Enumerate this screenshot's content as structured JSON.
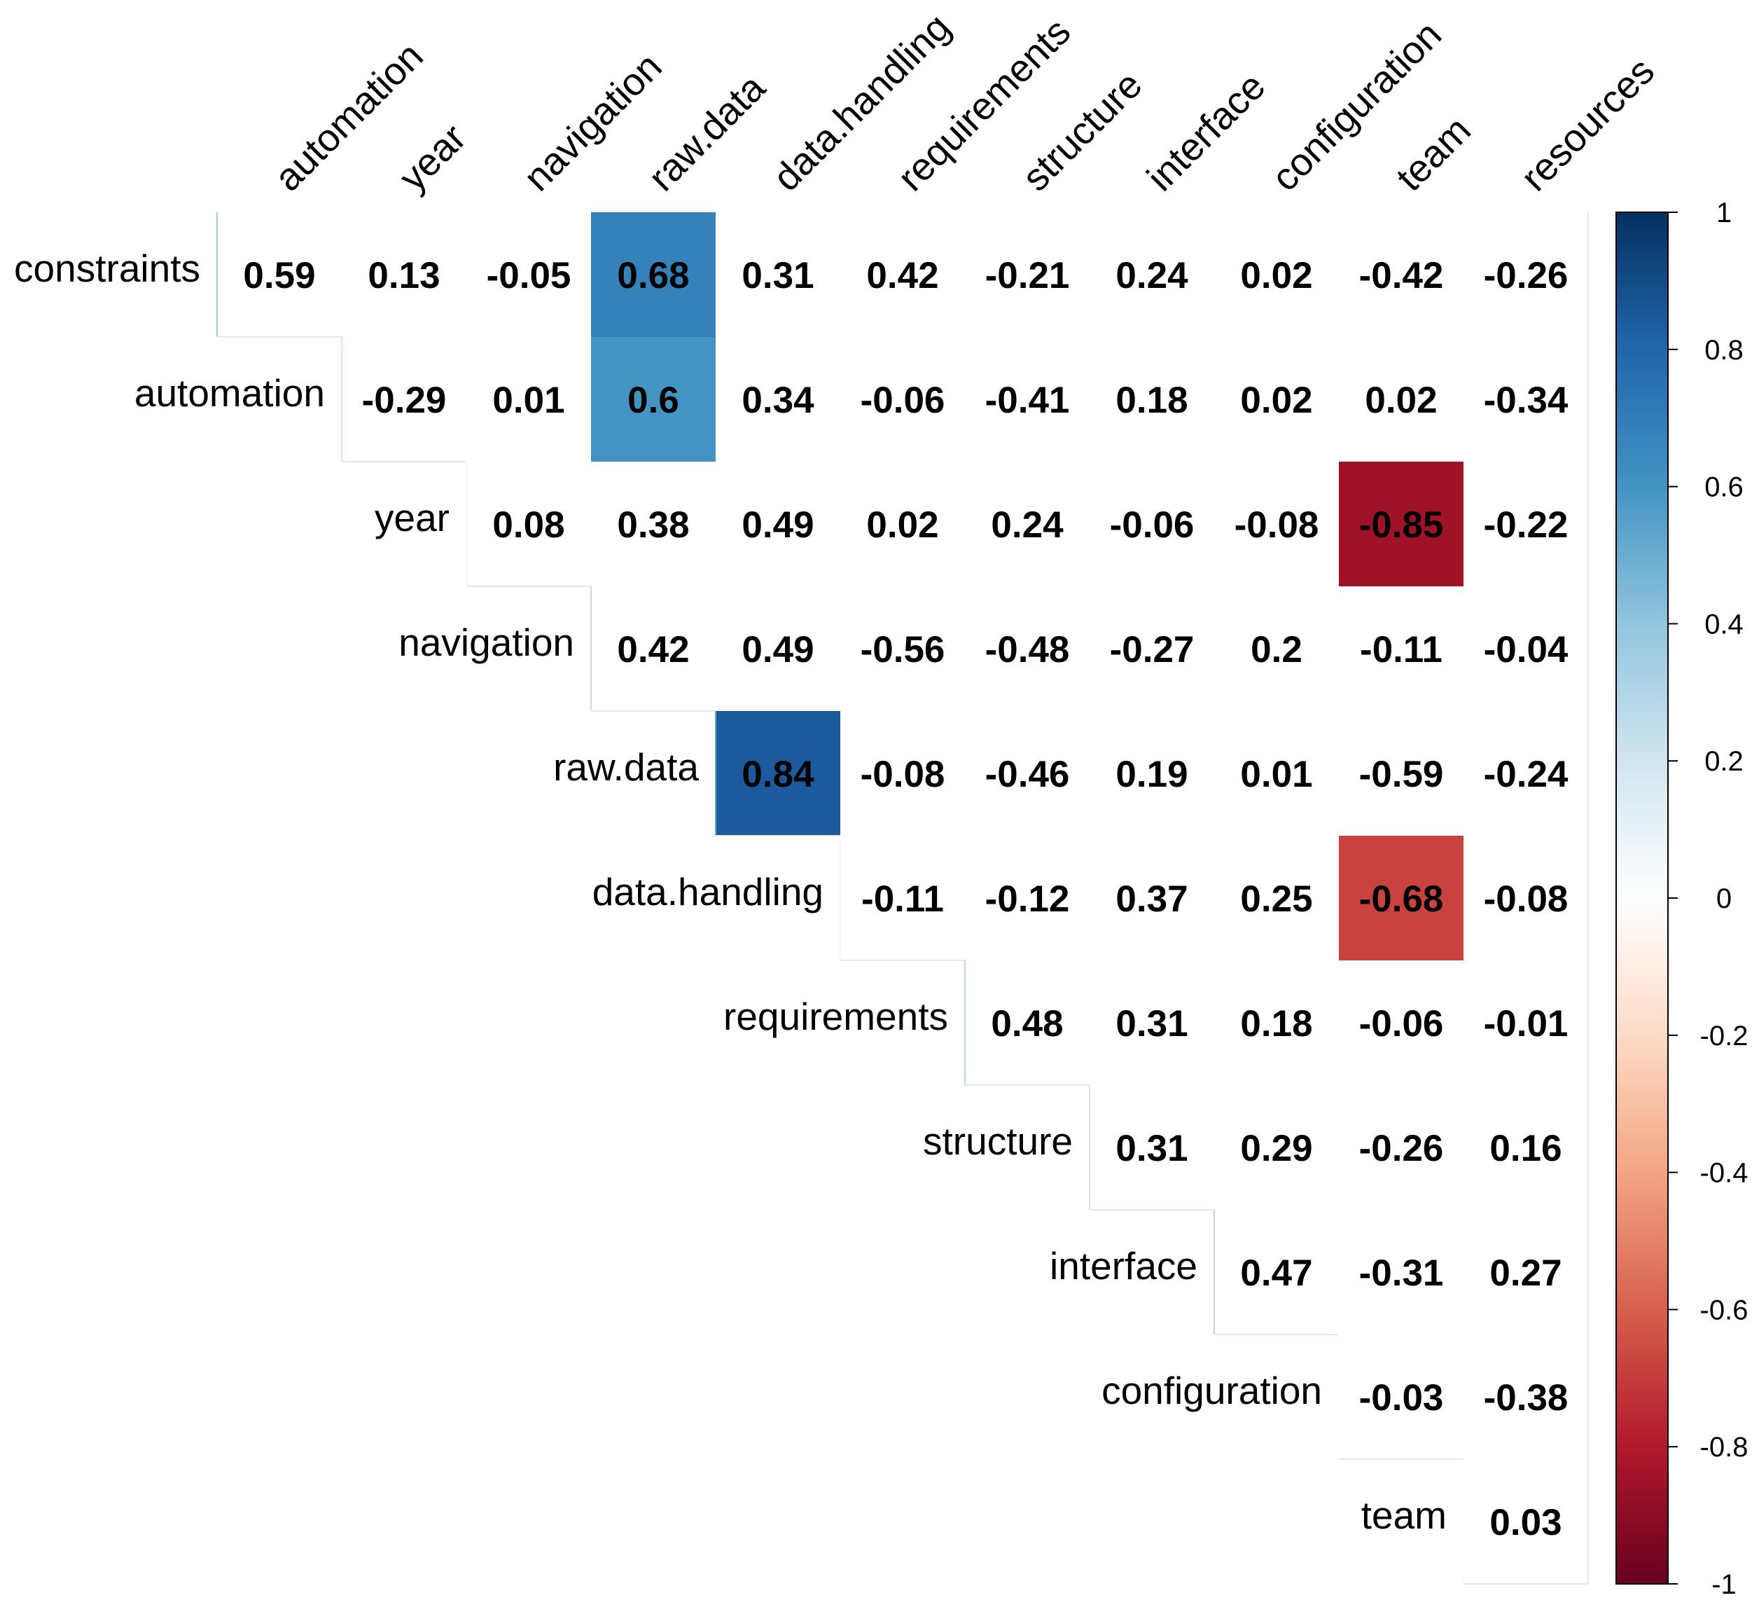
{
  "chart_data": {
    "type": "heatmap",
    "subtype": "upper-triangular correlation matrix",
    "row_labels": [
      "constraints",
      "automation",
      "year",
      "navigation",
      "raw.data",
      "data.handling",
      "requirements",
      "structure",
      "interface",
      "configuration",
      "team"
    ],
    "col_labels": [
      "automation",
      "year",
      "navigation",
      "raw.data",
      "data.handling",
      "requirements",
      "structure",
      "interface",
      "configuration",
      "team",
      "resources"
    ],
    "values": [
      [
        0.59,
        0.13,
        -0.05,
        0.68,
        0.31,
        0.42,
        -0.21,
        0.24,
        0.02,
        -0.42,
        -0.26
      ],
      [
        null,
        -0.29,
        0.01,
        0.6,
        0.34,
        -0.06,
        -0.41,
        0.18,
        0.02,
        0.02,
        -0.34
      ],
      [
        null,
        null,
        0.08,
        0.38,
        0.49,
        0.02,
        0.24,
        -0.06,
        -0.08,
        -0.85,
        -0.22
      ],
      [
        null,
        null,
        null,
        0.42,
        0.49,
        -0.56,
        -0.48,
        -0.27,
        0.2,
        -0.11,
        -0.04
      ],
      [
        null,
        null,
        null,
        null,
        0.84,
        -0.08,
        -0.46,
        0.19,
        0.01,
        -0.59,
        -0.24
      ],
      [
        null,
        null,
        null,
        null,
        null,
        -0.11,
        -0.12,
        0.37,
        0.25,
        -0.68,
        -0.08
      ],
      [
        null,
        null,
        null,
        null,
        null,
        null,
        0.48,
        0.31,
        0.18,
        -0.06,
        -0.01
      ],
      [
        null,
        null,
        null,
        null,
        null,
        null,
        null,
        0.31,
        0.29,
        -0.26,
        0.16
      ],
      [
        null,
        null,
        null,
        null,
        null,
        null,
        null,
        null,
        0.47,
        -0.31,
        0.27
      ],
      [
        null,
        null,
        null,
        null,
        null,
        null,
        null,
        null,
        null,
        -0.03,
        -0.38
      ],
      [
        null,
        null,
        null,
        null,
        null,
        null,
        null,
        null,
        null,
        null,
        0.03
      ]
    ],
    "highlight_threshold": 0.6,
    "colorbar": {
      "range": [
        -1,
        1
      ],
      "ticks": [
        1,
        0.8,
        0.6,
        0.4,
        0.2,
        0,
        -0.2,
        -0.4,
        -0.6,
        -0.8,
        -1
      ],
      "tick_labels": [
        "1",
        "0.8",
        "0.6",
        "0.4",
        "0.2",
        "0",
        "-0.2",
        "-0.4",
        "-0.6",
        "-0.8",
        "-1"
      ]
    },
    "colors": {
      "strong_negative": "#67001F",
      "negative": "#B2182B",
      "mid_negative": "#D6604D",
      "light_negative": "#F4A582",
      "faint_negative": "#FDDBC7",
      "neutral": "#FFFFFF",
      "faint_positive": "#D1E5F0",
      "light_positive": "#92C5DE",
      "mid_positive": "#4393C3",
      "positive": "#2166AC",
      "strong_positive": "#053061"
    }
  }
}
